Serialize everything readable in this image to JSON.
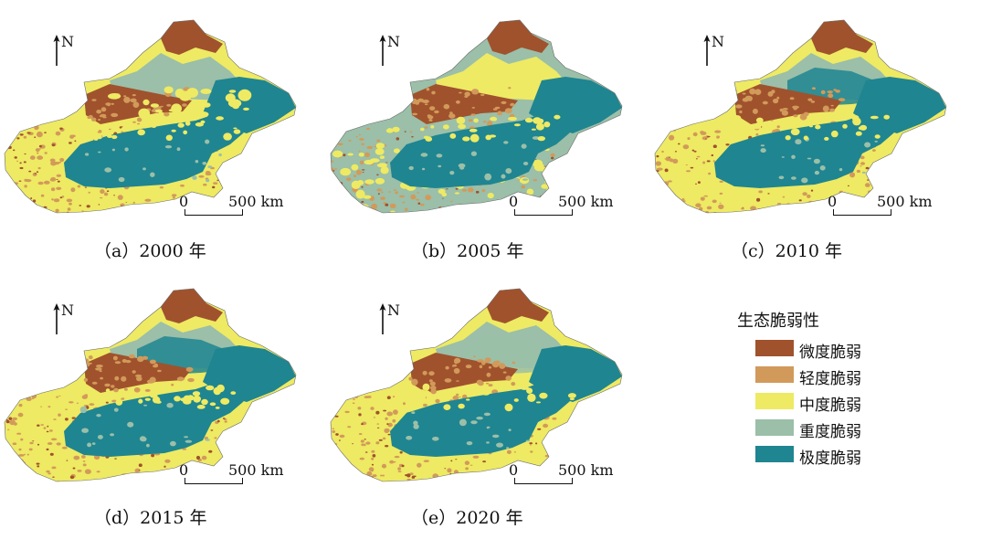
{
  "maps": [
    {
      "id": "a",
      "caption": "（a）2000 年",
      "north": "N",
      "scale_zero": "0",
      "scale_dist": "500 km",
      "variant": 0
    },
    {
      "id": "b",
      "caption": "（b）2005 年",
      "north": "N",
      "scale_zero": "0",
      "scale_dist": "500 km",
      "variant": 1
    },
    {
      "id": "c",
      "caption": "（c）2010 年",
      "north": "N",
      "scale_zero": "0",
      "scale_dist": "500 km",
      "variant": 2
    },
    {
      "id": "d",
      "caption": "（d）2015 年",
      "north": "N",
      "scale_zero": "0",
      "scale_dist": "500 km",
      "variant": 3
    },
    {
      "id": "e",
      "caption": "（e）2020 年",
      "north": "N",
      "scale_zero": "0",
      "scale_dist": "500 km",
      "variant": 4
    }
  ],
  "legend": {
    "title": "生态脆弱性",
    "items": [
      {
        "label": "微度脆弱",
        "color": "#a0522d"
      },
      {
        "label": "轻度脆弱",
        "color": "#d29a5a"
      },
      {
        "label": "中度脆弱",
        "color": "#eeea63"
      },
      {
        "label": "重度脆弱",
        "color": "#9bbfa8"
      },
      {
        "label": "极度脆弱",
        "color": "#1f8591"
      }
    ]
  }
}
